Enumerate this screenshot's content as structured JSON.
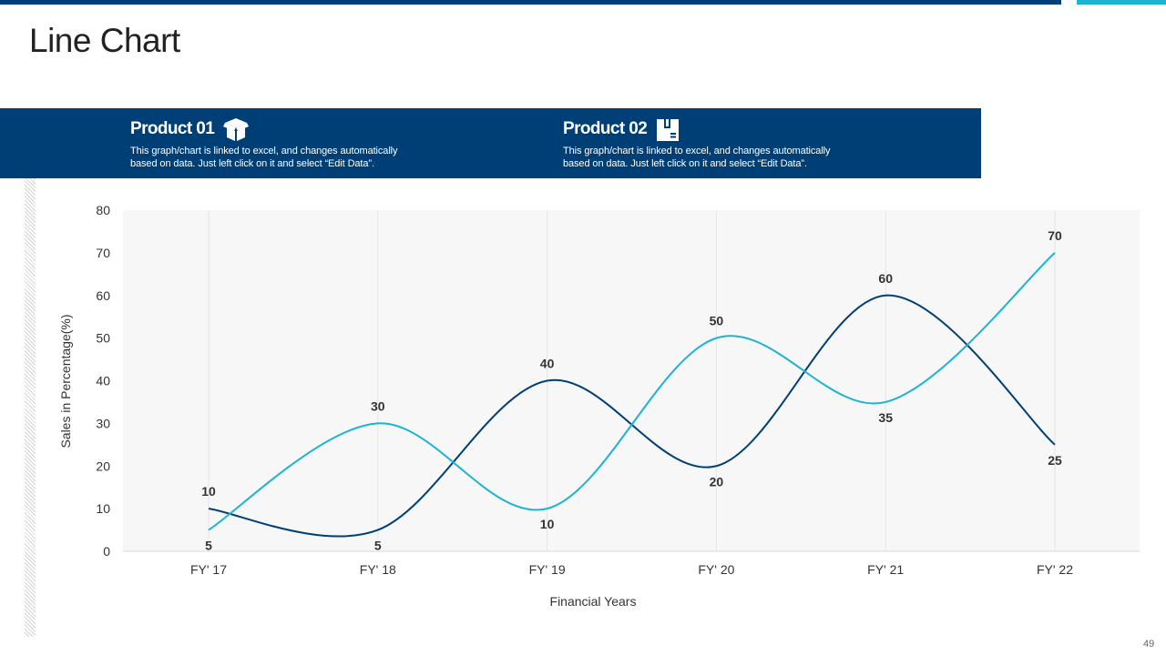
{
  "page": {
    "title": "Line Chart",
    "page_number": "49"
  },
  "products": [
    {
      "title": "Product 01",
      "icon": "open-box-icon",
      "description_line1": "This graph/chart is linked to excel, and changes automatically",
      "description_line2": "based on data. Just left click on it and select “Edit Data”."
    },
    {
      "title": "Product 02",
      "icon": "package-icon",
      "description_line1": "This graph/chart is linked to excel, and changes automatically",
      "description_line2": "based on data. Just left click on it and select “Edit Data”."
    }
  ],
  "colors": {
    "primary": "#003f75",
    "accent": "#1cb4cf",
    "plot_background": "#f7f7f7"
  },
  "chart_data": {
    "type": "line",
    "smooth": true,
    "categories": [
      "FY' 17",
      "FY' 18",
      "FY' 19",
      "FY' 20",
      "FY' 21",
      "FY' 22"
    ],
    "series": [
      {
        "values": [
          10,
          5,
          40,
          20,
          60,
          25
        ],
        "color": "#003f75"
      },
      {
        "values": [
          5,
          30,
          10,
          50,
          35,
          70
        ],
        "color": "#1cb4cf"
      }
    ],
    "xlabel": "Financial Years",
    "ylabel": "Sales in Percentage(%)",
    "ylim": [
      0,
      80
    ],
    "yticks": [
      0,
      10,
      20,
      30,
      40,
      50,
      60,
      70,
      80
    ],
    "data_labels": true,
    "grid": "vertical"
  }
}
